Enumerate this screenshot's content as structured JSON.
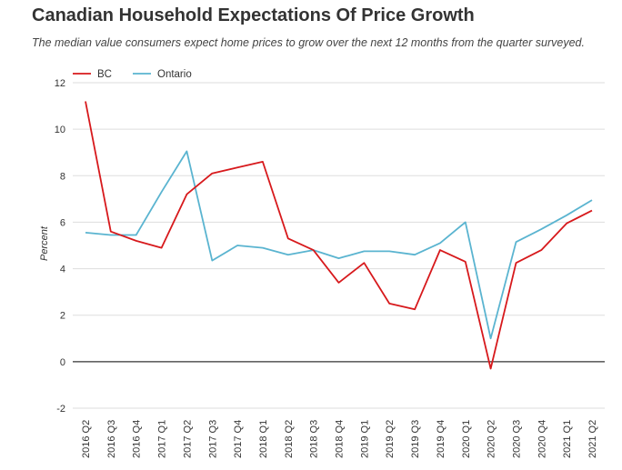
{
  "chart_data": {
    "type": "line",
    "title": "Canadian Household Expectations Of Price Growth",
    "subtitle": "The median value consumers expect home prices to grow over the next 12 months from the quarter surveyed.",
    "xlabel": "",
    "ylabel": "Percent",
    "ylim": [
      -2,
      12
    ],
    "yticks": [
      -2,
      0,
      2,
      4,
      6,
      8,
      10,
      12
    ],
    "categories": [
      "2016 Q2",
      "2016 Q3",
      "2016 Q4",
      "2017 Q1",
      "2017 Q2",
      "2017 Q3",
      "2017 Q4",
      "2018 Q1",
      "2018 Q2",
      "2018 Q3",
      "2018 Q4",
      "2019 Q1",
      "2019 Q2",
      "2019 Q3",
      "2019 Q4",
      "2020 Q1",
      "2020 Q2",
      "2020 Q3",
      "2020 Q4",
      "2021 Q1",
      "2021 Q2"
    ],
    "series": [
      {
        "name": "BC",
        "color": "#d7191c",
        "values": [
          11.2,
          5.6,
          5.2,
          4.9,
          7.2,
          8.1,
          8.35,
          8.6,
          5.3,
          4.8,
          3.4,
          4.25,
          2.5,
          2.25,
          4.8,
          4.3,
          -0.3,
          4.25,
          4.8,
          5.95,
          6.5
        ]
      },
      {
        "name": "Ontario",
        "color": "#5ab4d0",
        "values": [
          5.55,
          5.45,
          5.45,
          7.3,
          9.05,
          4.35,
          5.0,
          4.9,
          4.6,
          4.8,
          4.45,
          4.75,
          4.75,
          4.6,
          5.1,
          6.0,
          1.0,
          5.15,
          5.7,
          6.3,
          6.95
        ]
      }
    ],
    "legend": "top-left",
    "grid": true
  }
}
